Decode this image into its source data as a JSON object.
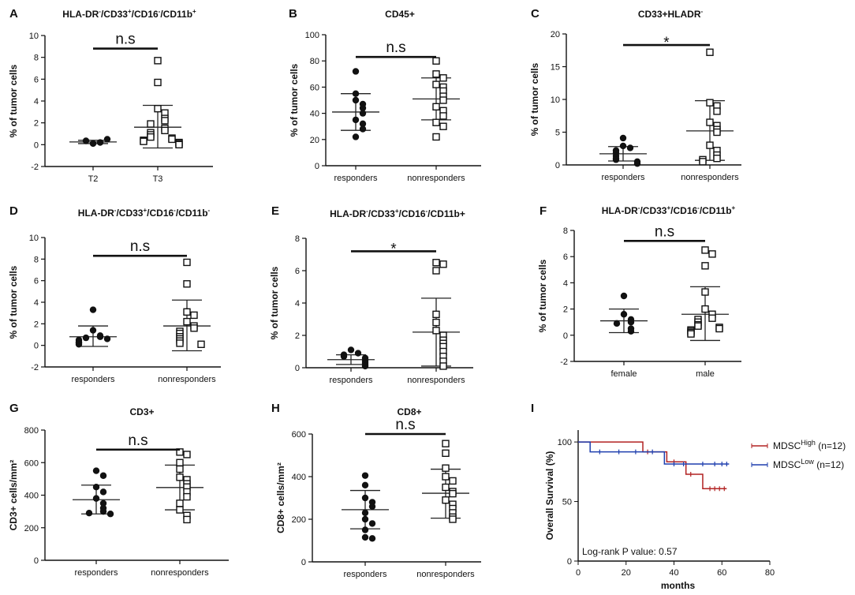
{
  "chart_data": [
    {
      "panel": "A",
      "type": "scatter",
      "style": "dot",
      "title": {
        "parts": [
          [
            "HLA-DR",
            ""
          ],
          [
            "-",
            "sup"
          ],
          [
            "/CD33",
            ""
          ],
          [
            "+",
            "sup"
          ],
          [
            "/CD16",
            ""
          ],
          [
            "-",
            "sup"
          ],
          [
            "/CD11b",
            ""
          ],
          [
            "+",
            "sup"
          ]
        ]
      },
      "ylabel": "% of tumor cells",
      "xlabel": "",
      "ylim": [
        -2,
        10
      ],
      "yticks": [
        -2,
        0,
        2,
        4,
        6,
        8,
        10
      ],
      "categories": [
        "T2",
        "T3"
      ],
      "groups": [
        {
          "name": "T2",
          "marker": "circle",
          "values": [
            0.1,
            0.2,
            0.35,
            0.5
          ],
          "mean": 0.25,
          "sd_low": 0.1,
          "sd_high": 0.4
        },
        {
          "name": "T3",
          "marker": "square",
          "values": [
            7.7,
            5.7,
            3.3,
            2.9,
            2.4,
            2.2,
            1.9,
            1.5,
            1.3,
            1.1,
            0.9,
            0.7,
            0.6,
            0.5,
            0.4,
            0.3,
            0.2,
            0.1,
            0.0
          ],
          "mean": 1.6,
          "sd_low": -0.3,
          "sd_high": 3.6
        }
      ],
      "significance": {
        "text": "n.s",
        "from": 0,
        "to": 1,
        "y": 8.8
      }
    },
    {
      "panel": "B",
      "type": "scatter",
      "style": "dot",
      "title": {
        "parts": [
          [
            "CD45+",
            ""
          ]
        ]
      },
      "ylabel": "% of tumor cells",
      "xlabel": "",
      "ylim": [
        0,
        100
      ],
      "yticks": [
        0,
        20,
        40,
        60,
        80,
        100
      ],
      "categories": [
        "responders",
        "nonresponders"
      ],
      "groups": [
        {
          "name": "responders",
          "marker": "circle",
          "values": [
            72,
            55,
            50,
            47,
            44,
            40,
            35,
            32,
            28,
            22
          ],
          "mean": 41,
          "sd_low": 27,
          "sd_high": 55
        },
        {
          "name": "nonresponders",
          "marker": "square",
          "values": [
            80,
            70,
            67,
            62,
            60,
            57,
            53,
            50,
            45,
            42,
            38,
            33,
            30,
            22
          ],
          "mean": 51,
          "sd_low": 35,
          "sd_high": 67
        }
      ],
      "significance": {
        "text": "n.s",
        "from": 0,
        "to": 1,
        "y": 83
      }
    },
    {
      "panel": "C",
      "type": "scatter",
      "style": "dot",
      "title": {
        "parts": [
          [
            "CD33+HLADR",
            ""
          ],
          [
            "-",
            "sup"
          ]
        ]
      },
      "ylabel": "% of tumor cells",
      "xlabel": "",
      "ylim": [
        0,
        20
      ],
      "yticks": [
        0,
        5,
        10,
        15,
        20
      ],
      "categories": [
        "responders",
        "nonresponders"
      ],
      "groups": [
        {
          "name": "responders",
          "marker": "circle",
          "values": [
            4.1,
            2.9,
            2.6,
            2.2,
            1.8,
            1.4,
            1.0,
            0.8,
            0.5,
            0.2
          ],
          "mean": 1.7,
          "sd_low": 0.6,
          "sd_high": 2.8
        },
        {
          "name": "nonresponders",
          "marker": "square",
          "values": [
            17.2,
            9.5,
            9.0,
            8.2,
            6.5,
            6.0,
            5.4,
            5.0,
            3.0,
            2.2,
            1.5,
            1.0,
            0.8,
            0.5
          ],
          "mean": 5.2,
          "sd_low": 0.7,
          "sd_high": 9.8
        },
        {
          "_note": "",
          "name": "",
          "values": []
        }
      ],
      "significance": {
        "text": "*",
        "from": 0,
        "to": 1,
        "y": 18.3
      }
    },
    {
      "panel": "D",
      "type": "scatter",
      "style": "dot",
      "title": {
        "parts": [
          [
            "HLA-DR",
            ""
          ],
          [
            "-",
            "sup"
          ],
          [
            "/CD33",
            ""
          ],
          [
            "+",
            "sup"
          ],
          [
            "/CD16",
            ""
          ],
          [
            "-",
            "sup"
          ],
          [
            "/CD11b",
            ""
          ],
          [
            "-",
            "sup"
          ]
        ]
      },
      "ylabel": "% of tumor cells",
      "xlabel": "",
      "ylim": [
        -2,
        10
      ],
      "yticks": [
        -2,
        0,
        2,
        4,
        6,
        8,
        10
      ],
      "categories": [
        "responders",
        "nonresponders"
      ],
      "groups": [
        {
          "name": "responders",
          "marker": "circle",
          "values": [
            3.3,
            1.4,
            0.9,
            0.8,
            0.7,
            0.6,
            0.5,
            0.3,
            0.2,
            0.1
          ],
          "mean": 0.8,
          "sd_low": -0.1,
          "sd_high": 1.8
        },
        {
          "name": "nonresponders",
          "marker": "square",
          "values": [
            7.7,
            5.7,
            3.1,
            2.8,
            2.2,
            1.8,
            1.6,
            1.3,
            1.1,
            0.8,
            0.6,
            0.4,
            0.2,
            0.1
          ],
          "mean": 1.8,
          "sd_low": -0.5,
          "sd_high": 4.2
        }
      ],
      "significance": {
        "text": "n.s",
        "from": 0,
        "to": 1,
        "y": 8.3
      }
    },
    {
      "panel": "E",
      "type": "scatter",
      "style": "dot",
      "title": {
        "parts": [
          [
            "HLA-DR",
            ""
          ],
          [
            "-",
            "sup"
          ],
          [
            "/CD33",
            ""
          ],
          [
            "+",
            "sup"
          ],
          [
            "/CD16",
            ""
          ],
          [
            "-",
            "sup"
          ],
          [
            "/CD11b+",
            ""
          ]
        ]
      },
      "ylabel": "% of tumor cells",
      "xlabel": "",
      "ylim": [
        0,
        8
      ],
      "yticks": [
        0,
        2,
        4,
        6,
        8
      ],
      "categories": [
        "responders",
        "nonresponders"
      ],
      "groups": [
        {
          "name": "responders",
          "marker": "circle",
          "values": [
            1.1,
            0.9,
            0.8,
            0.7,
            0.6,
            0.5,
            0.4,
            0.3,
            0.2,
            0.1
          ],
          "mean": 0.5,
          "sd_low": 0.2,
          "sd_high": 0.8
        },
        {
          "name": "nonresponders",
          "marker": "square",
          "values": [
            6.5,
            6.4,
            6.0,
            3.3,
            2.8,
            2.3,
            2.0,
            1.7,
            1.5,
            1.3,
            1.0,
            0.7,
            0.4,
            0.1
          ],
          "mean": 2.2,
          "sd_low": 0.1,
          "sd_high": 4.3
        }
      ],
      "significance": {
        "text": "*",
        "from": 0,
        "to": 1,
        "y": 7.2
      }
    },
    {
      "panel": "F",
      "type": "scatter",
      "style": "dot",
      "title": {
        "parts": [
          [
            "HLA-DR",
            ""
          ],
          [
            "-",
            "sup"
          ],
          [
            "/CD33",
            ""
          ],
          [
            "+",
            "sup"
          ],
          [
            "/CD16",
            ""
          ],
          [
            "-",
            "sup"
          ],
          [
            "/CD11b",
            ""
          ],
          [
            "+",
            "sup"
          ]
        ]
      },
      "ylabel": "% of tumor cells",
      "xlabel": "",
      "ylim": [
        -2,
        8
      ],
      "yticks": [
        -2,
        0,
        2,
        4,
        6,
        8
      ],
      "categories": [
        "female",
        "male"
      ],
      "groups": [
        {
          "name": "female",
          "marker": "circle",
          "values": [
            3.0,
            1.6,
            1.2,
            1.0,
            0.9,
            0.5,
            0.3
          ],
          "mean": 1.1,
          "sd_low": 0.2,
          "sd_high": 2.0
        },
        {
          "name": "male",
          "marker": "square",
          "values": [
            6.5,
            6.2,
            5.3,
            3.3,
            2.0,
            1.6,
            1.3,
            1.2,
            1.0,
            0.8,
            0.7,
            0.6,
            0.5,
            0.4,
            0.3,
            0.2,
            0.1
          ],
          "mean": 1.6,
          "sd_low": -0.4,
          "sd_high": 3.7
        }
      ],
      "significance": {
        "text": "n.s",
        "from": 0,
        "to": 1,
        "y": 7.2
      }
    },
    {
      "panel": "G",
      "type": "scatter",
      "style": "dot",
      "title": {
        "parts": [
          [
            "CD3+",
            ""
          ]
        ]
      },
      "ylabel": "CD3+ cells/mm²",
      "xlabel": "",
      "ylim": [
        0,
        800
      ],
      "yticks": [
        0,
        200,
        400,
        600,
        800
      ],
      "categories": [
        "responders",
        "nonresponders"
      ],
      "groups": [
        {
          "name": "responders",
          "marker": "circle",
          "values": [
            550,
            520,
            450,
            420,
            380,
            350,
            320,
            300,
            290,
            285
          ],
          "mean": 372,
          "sd_low": 285,
          "sd_high": 462
        },
        {
          "name": "nonresponders",
          "marker": "square",
          "values": [
            665,
            650,
            600,
            560,
            510,
            495,
            470,
            450,
            420,
            390,
            350,
            310,
            275,
            250
          ],
          "mean": 447,
          "sd_low": 310,
          "sd_high": 585
        }
      ],
      "significance": {
        "text": "n.s",
        "from": 0,
        "to": 1,
        "y": 680
      }
    },
    {
      "panel": "H",
      "type": "scatter",
      "style": "dot",
      "title": {
        "parts": [
          [
            "CD8+",
            ""
          ]
        ]
      },
      "ylabel": "CD8+ cells/mm²",
      "xlabel": "",
      "ylim": [
        0,
        600
      ],
      "yticks": [
        0,
        200,
        400,
        600
      ],
      "categories": [
        "responders",
        "nonresponders"
      ],
      "groups": [
        {
          "name": "responders",
          "marker": "circle",
          "values": [
            405,
            360,
            300,
            280,
            260,
            230,
            200,
            180,
            150,
            115,
            110
          ],
          "mean": 245,
          "sd_low": 155,
          "sd_high": 335
        },
        {
          "name": "nonresponders",
          "marker": "square",
          "values": [
            555,
            510,
            440,
            400,
            380,
            350,
            330,
            320,
            290,
            270,
            250,
            230,
            210,
            200
          ],
          "mean": 322,
          "sd_low": 205,
          "sd_high": 435
        }
      ],
      "significance": {
        "text": "n.s",
        "from": 0,
        "to": 1,
        "y": 600
      }
    },
    {
      "panel": "I",
      "type": "line",
      "style": "km",
      "title": {
        "parts": [
          [
            "",
            ""
          ]
        ]
      },
      "ylabel": "Overall Survival (%)",
      "xlabel": "months",
      "xlim": [
        0,
        80
      ],
      "ylim": [
        0,
        110
      ],
      "xticks": [
        0,
        20,
        40,
        60,
        80
      ],
      "yticks": [
        0,
        50,
        100
      ],
      "series": [
        {
          "name_main": "MDSC",
          "name_sup": "High",
          "name_rest": " (n=12)",
          "color": "#b22222",
          "steps": [
            [
              0,
              100
            ],
            [
              27,
              100
            ],
            [
              27,
              91.7
            ],
            [
              37,
              91.7
            ],
            [
              37,
              83.3
            ],
            [
              45,
              83.3
            ],
            [
              45,
              72.9
            ],
            [
              52,
              72.9
            ],
            [
              52,
              60.8
            ],
            [
              62,
              60.8
            ]
          ],
          "censors": [
            [
              29,
              91.7
            ],
            [
              40,
              83.3
            ],
            [
              47,
              72.9
            ],
            [
              55,
              60.8
            ],
            [
              57,
              60.8
            ],
            [
              59,
              60.8
            ],
            [
              61,
              60.8
            ]
          ]
        },
        {
          "name_main": "MDSC",
          "name_sup": "Low",
          "name_rest": " (n=12)",
          "color": "#1f3fae",
          "steps": [
            [
              0,
              100
            ],
            [
              5,
              100
            ],
            [
              5,
              91.7
            ],
            [
              36,
              91.7
            ],
            [
              36,
              81.5
            ],
            [
              63,
              81.5
            ]
          ],
          "censors": [
            [
              9,
              91.7
            ],
            [
              17,
              91.7
            ],
            [
              24,
              91.7
            ],
            [
              31,
              91.7
            ],
            [
              40,
              81.5
            ],
            [
              44,
              81.5
            ],
            [
              52,
              81.5
            ],
            [
              57,
              81.5
            ],
            [
              60,
              81.5
            ],
            [
              62,
              81.5
            ]
          ]
        }
      ],
      "annotation": "Log-rank P value: 0.57"
    }
  ]
}
